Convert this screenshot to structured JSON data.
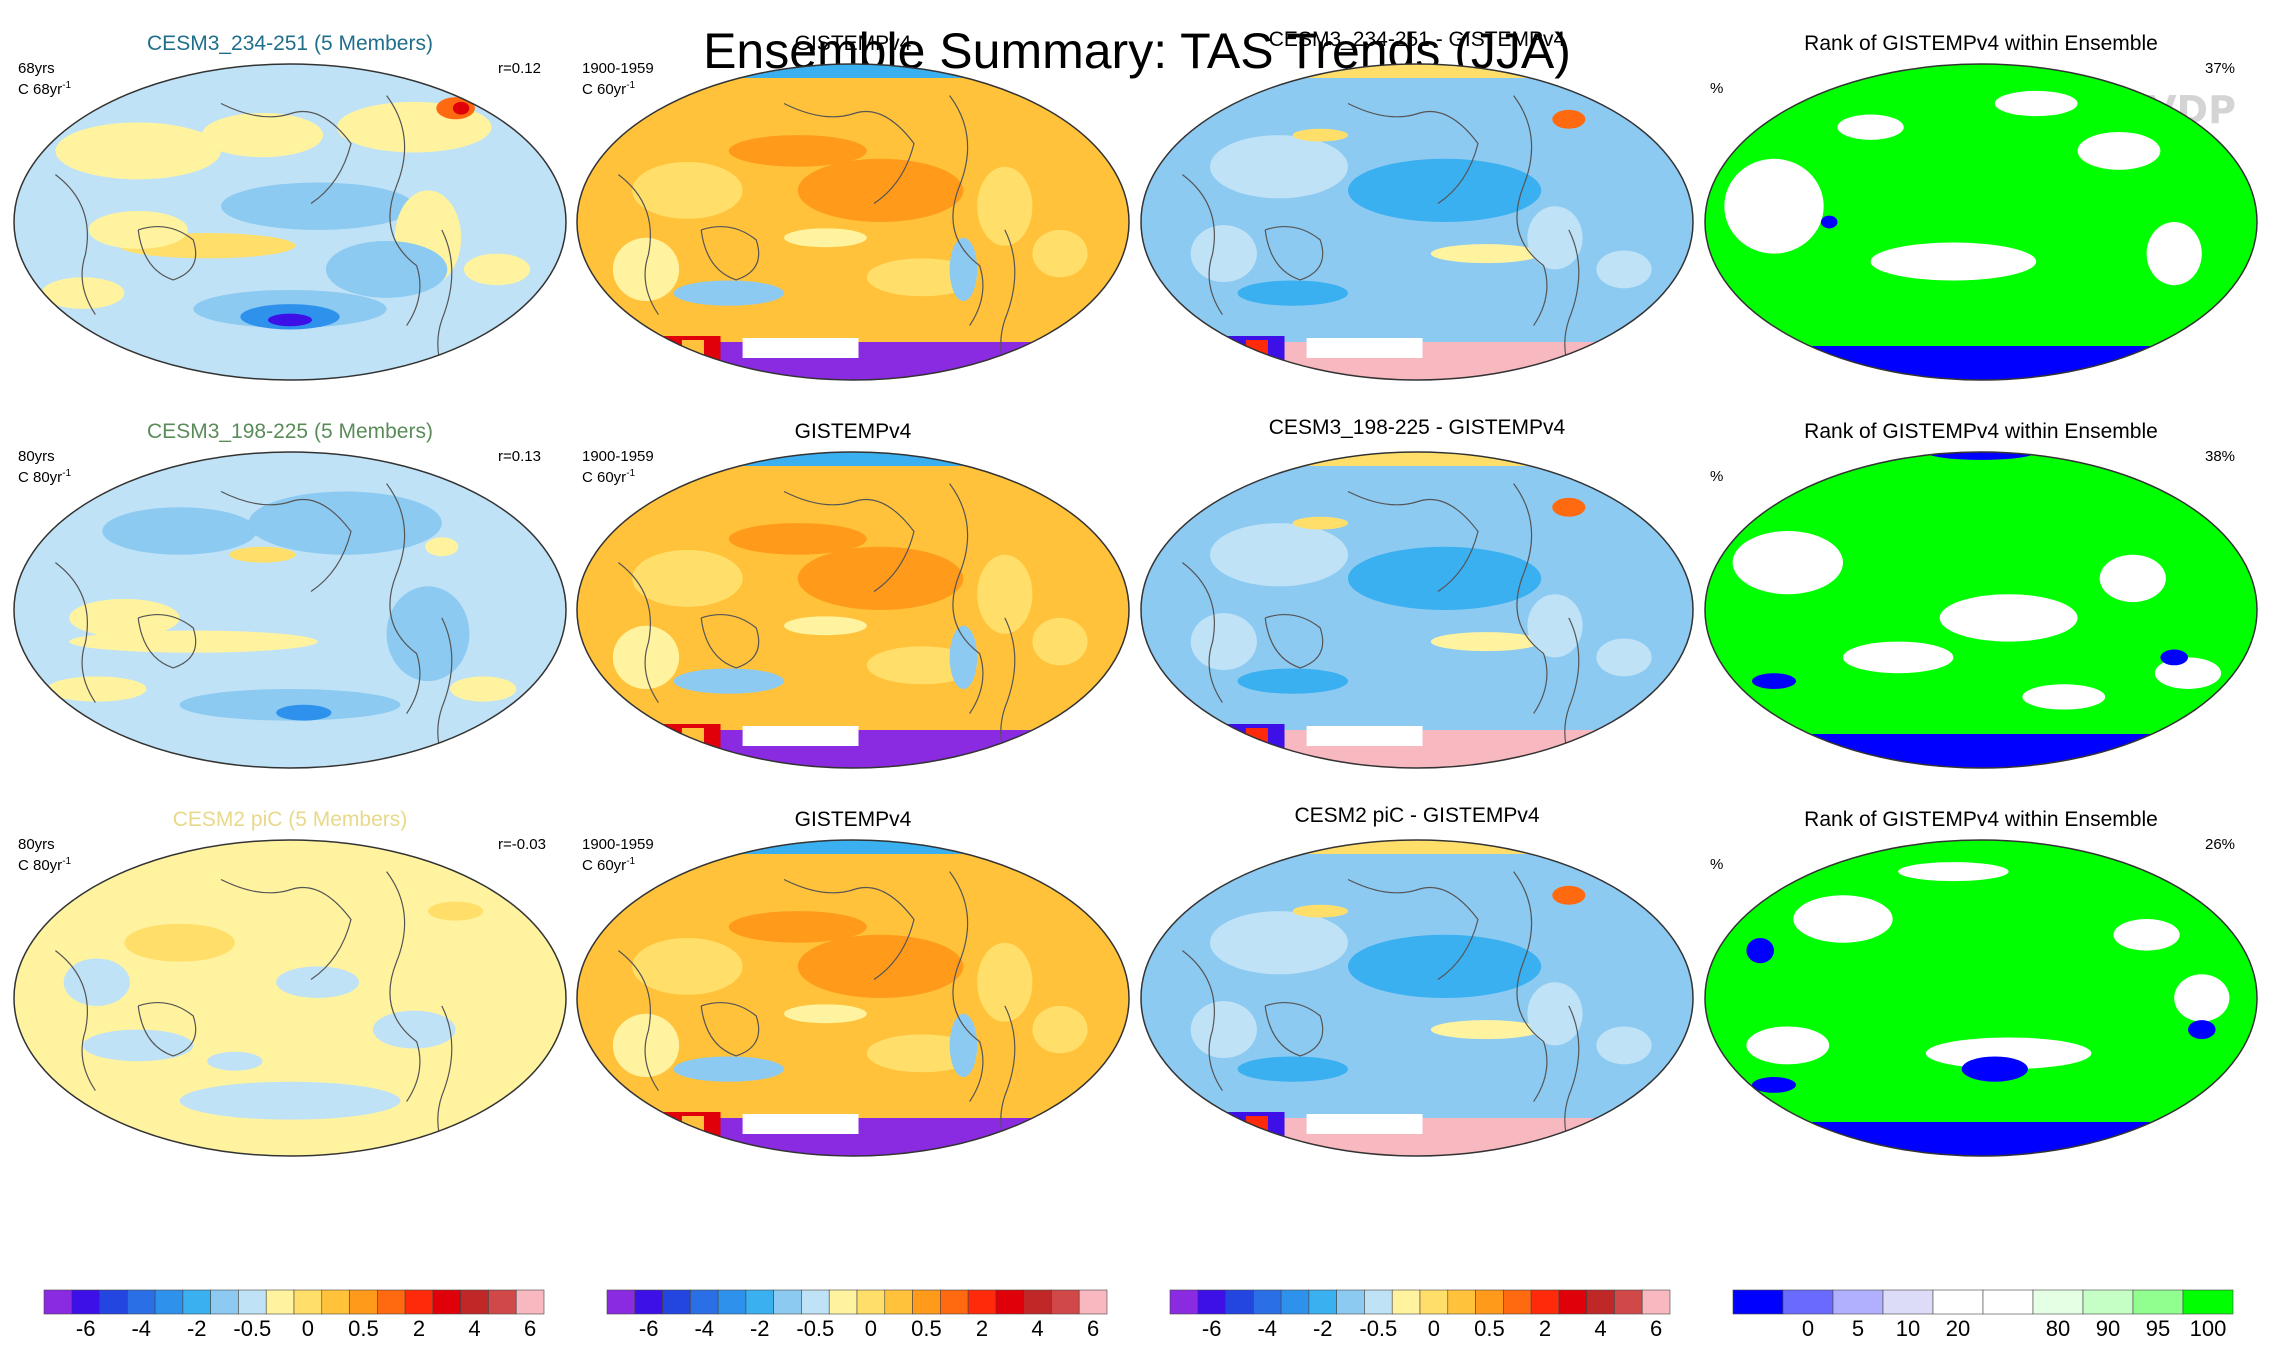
{
  "title": "Ensemble Summary: TAS Trends (JJA)",
  "watermark": "© CVDP",
  "chart_data": {
    "type": "heatmap",
    "title": "Ensemble Summary: TAS Trends (JJA)",
    "projection": "Robinson (Pacific-centered)",
    "rows": [
      {
        "ensemble_panel": {
          "title": "CESM3_234-251 (5 Members)",
          "title_color": "#1f6f8b",
          "years": "68yrs",
          "units": "C 68yr",
          "unit_sup": "-1",
          "corr": "r=0.12",
          "tone": "mixed"
        },
        "obs_panel": {
          "title": "GISTEMPv4",
          "period": "1900-1959",
          "units": "C 60yr",
          "unit_sup": "-1"
        },
        "diff_panel": {
          "title": "CESM3_234-251 - GISTEMPv4"
        },
        "rank_panel": {
          "title": "Rank of GISTEMPv4 within Ensemble",
          "units": "%",
          "pct": "37%"
        }
      },
      {
        "ensemble_panel": {
          "title": "CESM3_198-225 (5 Members)",
          "title_color": "#5a8c5a",
          "years": "80yrs",
          "units": "C 80yr",
          "unit_sup": "-1",
          "corr": "r=0.13",
          "tone": "cool"
        },
        "obs_panel": {
          "title": "GISTEMPv4",
          "period": "1900-1959",
          "units": "C 60yr",
          "unit_sup": "-1"
        },
        "diff_panel": {
          "title": "CESM3_198-225 - GISTEMPv4"
        },
        "rank_panel": {
          "title": "Rank of GISTEMPv4 within Ensemble",
          "units": "%",
          "pct": "38%"
        }
      },
      {
        "ensemble_panel": {
          "title": "CESM2 piC (5 Members)",
          "title_color": "#e8d98a",
          "years": "80yrs",
          "units": "C 80yr",
          "unit_sup": "-1",
          "corr": "r=-0.03",
          "tone": "neutral"
        },
        "obs_panel": {
          "title": "GISTEMPv4",
          "period": "1900-1959",
          "units": "C 60yr",
          "unit_sup": "-1"
        },
        "diff_panel": {
          "title": "CESM2 piC - GISTEMPv4"
        },
        "rank_panel": {
          "title": "Rank of GISTEMPv4 within Ensemble",
          "units": "%",
          "pct": "26%"
        }
      }
    ],
    "trend_colorbar": {
      "colors": [
        "#8a2be2",
        "#3c10e6",
        "#2346e0",
        "#2a6fe6",
        "#2e92ec",
        "#3ab0f0",
        "#8ccaf2",
        "#bfe2f6",
        "#fff3a0",
        "#ffdf6a",
        "#ffc23a",
        "#ff9a1a",
        "#ff6a10",
        "#ff2a0a",
        "#e0000a",
        "#c02828",
        "#d04848",
        "#f8b8c0"
      ],
      "tick_labels": [
        "-6",
        "-4",
        "-2",
        "-0.5",
        "0",
        "0.5",
        "2",
        "4",
        "6"
      ],
      "tick_positions": [
        1.5,
        3.5,
        5.5,
        7.5,
        9.5,
        11.5,
        13.5,
        15.5,
        17.5
      ]
    },
    "rank_colorbar": {
      "colors": [
        "#0000ff",
        "#6a6aff",
        "#b0b0ff",
        "#dcdcf8",
        "#ffffff",
        "#ffffff",
        "#e4ffe4",
        "#c6ffc6",
        "#90ff90",
        "#00ff00"
      ],
      "tick_labels": [
        "0",
        "5",
        "10",
        "20",
        "80",
        "90",
        "95",
        "100"
      ],
      "tick_positions": [
        1.5,
        2.5,
        3.5,
        4.5,
        6.5,
        7.5,
        8.5,
        9.5
      ]
    }
  }
}
